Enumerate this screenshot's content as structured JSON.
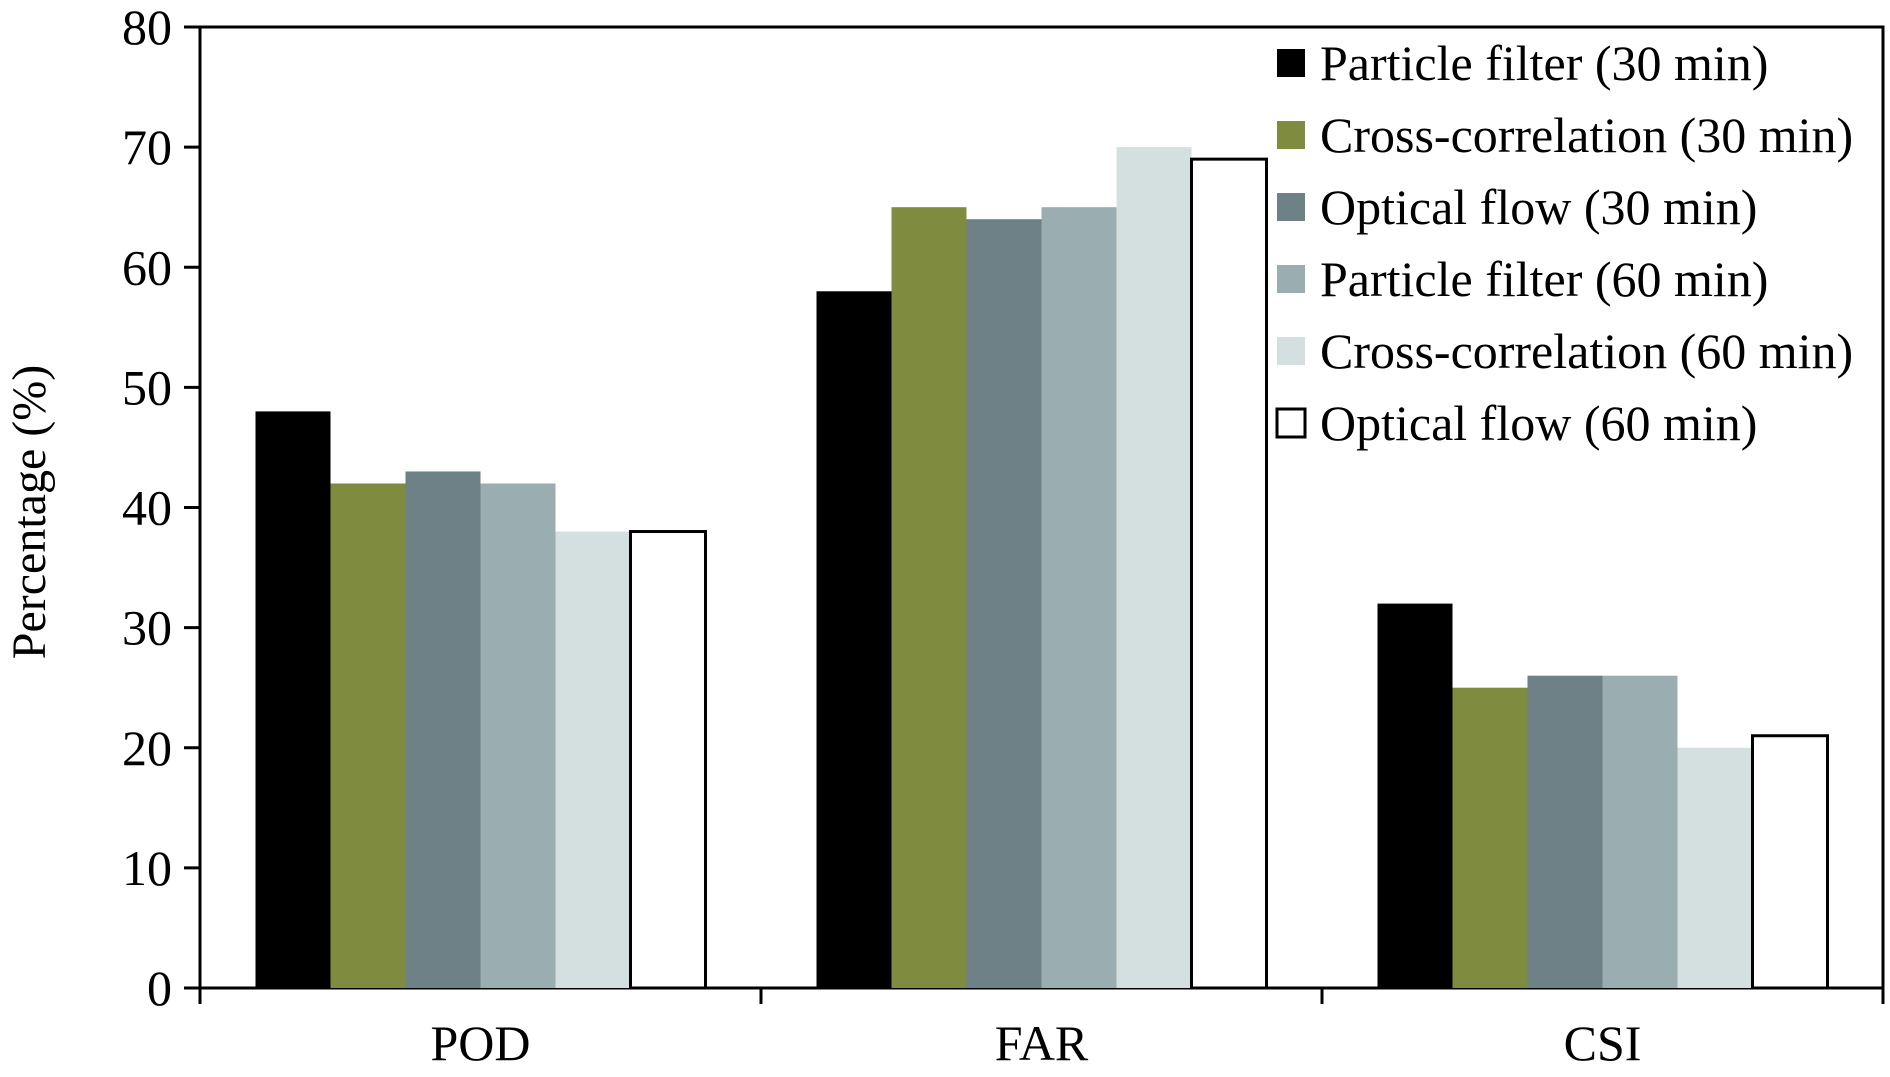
{
  "chart_data": {
    "type": "bar",
    "title": "",
    "xlabel": "",
    "ylabel": "Percentage (%)",
    "ylim": [
      0,
      80
    ],
    "yticks": [
      0,
      10,
      20,
      30,
      40,
      50,
      60,
      70,
      80
    ],
    "grid": false,
    "legend_position": "top-right",
    "categories": [
      "POD",
      "FAR",
      "CSI"
    ],
    "series": [
      {
        "name": "Particle filter (30 min)",
        "color": "#000000",
        "stroke": "#000000",
        "values": [
          48,
          58,
          32
        ]
      },
      {
        "name": "Cross-correlation (30 min)",
        "color": "#7f8c40",
        "stroke": "#7f8c40",
        "values": [
          42,
          65,
          25
        ]
      },
      {
        "name": "Optical flow (30 min)",
        "color": "#6e8187",
        "stroke": "#6e8187",
        "values": [
          43,
          64,
          26
        ]
      },
      {
        "name": "Particle filter (60 min)",
        "color": "#9aaeb2",
        "stroke": "#9aaeb2",
        "values": [
          42,
          65,
          26
        ]
      },
      {
        "name": "Cross-correlation (60 min)",
        "color": "#d4dfe0",
        "stroke": "#d4dfe0",
        "values": [
          38,
          70,
          20
        ]
      },
      {
        "name": "Optical flow (60 min)",
        "color": "#ffffff",
        "stroke": "#000000",
        "values": [
          38,
          69,
          21
        ]
      }
    ]
  }
}
